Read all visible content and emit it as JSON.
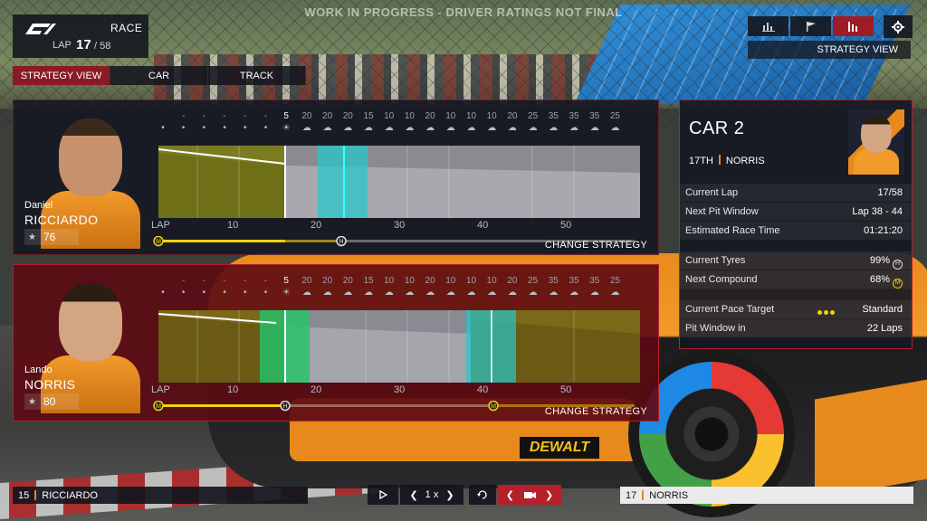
{
  "header": {
    "session_label": "RACE",
    "lap_label": "LAP",
    "lap_current": "17",
    "lap_total": "/ 58",
    "watermark": "WORK IN PROGRESS - DRIVER RATINGS NOT FINAL"
  },
  "tabs": [
    {
      "label": "STRATEGY VIEW",
      "active": true
    },
    {
      "label": "CAR",
      "active": false
    },
    {
      "label": "TRACK",
      "active": false
    }
  ],
  "top_right": {
    "view_title": "STRATEGY VIEW",
    "view_buttons": [
      "bar-chart-icon",
      "flag-icon",
      "strategy-bars-icon"
    ],
    "active_view": 2,
    "settings_icon": "gear-icon"
  },
  "weather_values": [
    "",
    "-",
    "-",
    "-",
    "-",
    "-",
    "5",
    "20",
    "20",
    "20",
    "15",
    "10",
    "10",
    "20",
    "10",
    "10",
    "10",
    "20",
    "25",
    "35",
    "35",
    "35",
    "25"
  ],
  "drivers": [
    {
      "first_name": "Daniel",
      "last_name": "RICCIARDO",
      "rating": "76",
      "change_strategy": "CHANGE STRATEGY",
      "stints": [
        "M",
        "H"
      ],
      "lap_axis": [
        "LAP",
        "10",
        "20",
        "30",
        "40",
        "50"
      ]
    },
    {
      "first_name": "Lando",
      "last_name": "NORRIS",
      "rating": "80",
      "change_strategy": "CHANGE STRATEGY",
      "stints": [
        "M",
        "H",
        "M"
      ],
      "lap_axis": [
        "LAP",
        "10",
        "20",
        "30",
        "40",
        "50"
      ]
    }
  ],
  "car_panel": {
    "title": "CAR 2",
    "position": "17TH",
    "driver": "NORRIS",
    "rows": [
      {
        "key": "Current Lap",
        "value": "17/58"
      },
      {
        "key": "Next Pit Window",
        "value": "Lap 38 - 44"
      },
      {
        "key": "Estimated Race Time",
        "value": "01:21:20"
      },
      {
        "key": "Current Tyres",
        "value": "99%",
        "tyre": "H"
      },
      {
        "key": "Next Compound",
        "value": "68%",
        "tyre": "M"
      },
      {
        "key": "Current Pace Target",
        "value": "Standard"
      },
      {
        "key": "Pit Window in",
        "value": "22 Laps"
      }
    ]
  },
  "bottom": {
    "left_position": "15",
    "left_driver": "RICCIARDO",
    "right_position": "17",
    "right_driver": "NORRIS",
    "speed_label": "1 x"
  },
  "colors": {
    "accent_red": "#b5202b",
    "papaya": "#e8891d",
    "medium_yellow": "#f2d20e",
    "pit_window_cyan": "#27c7c9",
    "pit_window_green": "#22c46a"
  }
}
